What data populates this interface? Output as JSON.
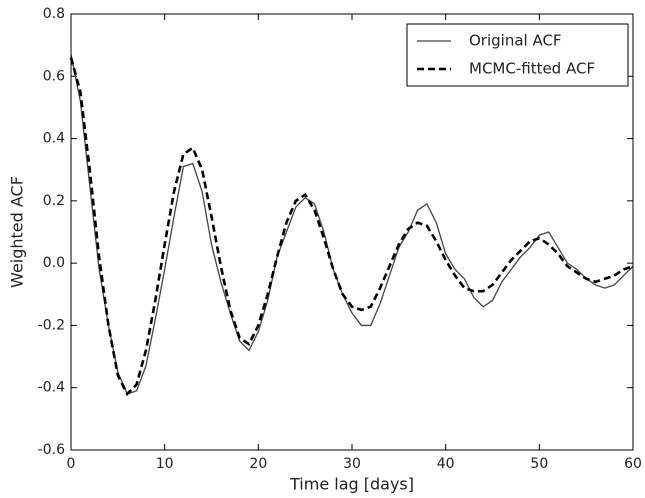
{
  "chart_data": {
    "type": "line",
    "xlabel": "Time lag [days]",
    "ylabel": "Weighted ACF",
    "x": [
      0,
      1,
      2,
      3,
      4,
      5,
      6,
      7,
      8,
      9,
      10,
      11,
      12,
      13,
      14,
      15,
      16,
      17,
      18,
      19,
      20,
      21,
      22,
      23,
      24,
      25,
      26,
      27,
      28,
      29,
      30,
      31,
      32,
      33,
      34,
      35,
      36,
      37,
      38,
      39,
      40,
      41,
      42,
      43,
      44,
      45,
      46,
      47,
      48,
      49,
      50,
      51,
      52,
      53,
      54,
      55,
      56,
      57,
      58,
      59,
      60
    ],
    "series": [
      {
        "name": "Original ACF",
        "color": "#444444",
        "style": "solid",
        "values": [
          0.67,
          0.52,
          0.25,
          -0.02,
          -0.2,
          -0.35,
          -0.42,
          -0.41,
          -0.33,
          -0.18,
          -0.02,
          0.15,
          0.31,
          0.32,
          0.23,
          0.06,
          -0.06,
          -0.16,
          -0.25,
          -0.28,
          -0.22,
          -0.12,
          0.02,
          0.1,
          0.18,
          0.21,
          0.19,
          0.1,
          -0.02,
          -0.1,
          -0.16,
          -0.2,
          -0.2,
          -0.13,
          -0.04,
          0.05,
          0.1,
          0.17,
          0.19,
          0.13,
          0.03,
          -0.02,
          -0.05,
          -0.11,
          -0.14,
          -0.12,
          -0.06,
          -0.02,
          0.02,
          0.05,
          0.09,
          0.1,
          0.05,
          0.0,
          -0.02,
          -0.05,
          -0.07,
          -0.08,
          -0.07,
          -0.04,
          -0.01
        ]
      },
      {
        "name": "MCMC-fitted ACF",
        "color": "#000000",
        "style": "dashed",
        "values": [
          0.66,
          0.55,
          0.3,
          0.02,
          -0.2,
          -0.36,
          -0.42,
          -0.39,
          -0.28,
          -0.12,
          0.06,
          0.23,
          0.35,
          0.37,
          0.3,
          0.15,
          -0.01,
          -0.15,
          -0.24,
          -0.26,
          -0.2,
          -0.1,
          0.02,
          0.13,
          0.2,
          0.22,
          0.17,
          0.08,
          -0.02,
          -0.1,
          -0.14,
          -0.15,
          -0.14,
          -0.08,
          -0.01,
          0.06,
          0.11,
          0.13,
          0.12,
          0.07,
          0.01,
          -0.04,
          -0.08,
          -0.09,
          -0.09,
          -0.07,
          -0.03,
          0.01,
          0.04,
          0.07,
          0.08,
          0.06,
          0.03,
          -0.01,
          -0.03,
          -0.05,
          -0.06,
          -0.05,
          -0.04,
          -0.02,
          -0.01
        ]
      }
    ],
    "xlim": [
      0,
      60
    ],
    "xticks": [
      0,
      10,
      20,
      30,
      40,
      50,
      60
    ],
    "ylim": [
      -0.6,
      0.8
    ],
    "yticks": [
      -0.6,
      -0.4,
      -0.2,
      {
        "value": 0,
        "label": "0.0"
      },
      0.2,
      0.4,
      0.6,
      0.8
    ],
    "legend": "upper right",
    "grid": false
  }
}
